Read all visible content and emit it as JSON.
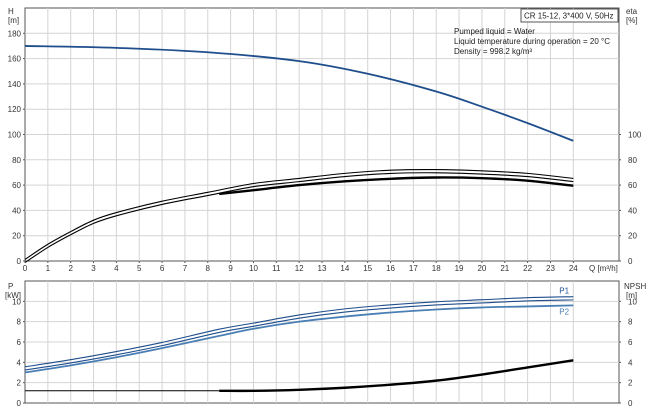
{
  "chart_data": [
    {
      "type": "line",
      "panel": "top",
      "title": "CR 15-12, 3*400 V, 50Hz",
      "info_lines": [
        "Pumped liquid = Water",
        "Liquid temperature during operation = 20 °C",
        "Density = 998.2 kg/m³"
      ],
      "xlabel": "Q [m³/h]",
      "x_ticks": [
        0,
        1,
        2,
        3,
        4,
        5,
        6,
        7,
        8,
        9,
        10,
        11,
        12,
        13,
        14,
        15,
        16,
        17,
        18,
        19,
        20,
        21,
        22,
        23,
        24
      ],
      "xlim": [
        0,
        26
      ],
      "ylabel_left_name": "H",
      "ylabel_left_unit": "[m]",
      "ylim_left": [
        0,
        200
      ],
      "y_ticks_left": [
        0,
        20,
        40,
        60,
        80,
        100,
        120,
        140,
        160,
        180
      ],
      "ylabel_right_name": "eta",
      "ylabel_right_unit": "[%]",
      "ylim_right": [
        0,
        200
      ],
      "y_ticks_right": [
        0,
        20,
        40,
        60,
        80,
        100
      ],
      "grid": true,
      "series": [
        {
          "axis": "left",
          "color": "#1f4e8c",
          "style": "single",
          "x": [
            0,
            4,
            8,
            12,
            15,
            18,
            20,
            22,
            24
          ],
          "y": [
            170,
            168.5,
            165,
            158,
            148,
            134,
            122,
            109,
            95
          ]
        },
        {
          "axis": "right",
          "color": "#000000",
          "style": "double",
          "x": [
            0,
            1,
            2,
            3,
            4,
            6,
            8,
            10,
            12,
            14,
            16,
            18,
            20,
            22,
            24
          ],
          "y": [
            0,
            12,
            22,
            31,
            37,
            46,
            53,
            60,
            64,
            68,
            70.5,
            71,
            70,
            68,
            64
          ]
        },
        {
          "axis": "right",
          "color": "#000000",
          "style": "thick",
          "x": [
            8.5,
            10,
            12,
            14,
            16,
            18,
            20,
            22,
            24
          ],
          "y": [
            53,
            56,
            60,
            63,
            65,
            66,
            65.5,
            63.5,
            59.5
          ]
        }
      ]
    },
    {
      "type": "line",
      "panel": "bottom",
      "ylabel_left_name": "P",
      "ylabel_left_unit": "[kW]",
      "ylim_left": [
        0,
        12
      ],
      "y_ticks_left": [
        0,
        2,
        4,
        6,
        8,
        10
      ],
      "ylabel_right_name": "NPSH",
      "ylabel_right_unit": "[m]",
      "ylim_right": [
        0,
        12
      ],
      "y_ticks_right": [
        0,
        2,
        4,
        6,
        8,
        10
      ],
      "xlim": [
        0,
        26
      ],
      "grid": true,
      "series": [
        {
          "name": "P1",
          "axis": "left",
          "color": "#1f4e8c",
          "style": "double",
          "x": [
            0,
            2,
            4,
            6,
            8.5,
            10,
            12,
            14,
            16,
            18,
            20,
            22,
            24
          ],
          "y": [
            3.4,
            4.1,
            4.9,
            5.8,
            7.1,
            7.7,
            8.5,
            9.1,
            9.5,
            9.8,
            10.0,
            10.2,
            10.3
          ]
        },
        {
          "name": "P2",
          "axis": "left",
          "color": "#4a7fb5",
          "style": "single",
          "x": [
            0,
            2,
            4,
            6,
            8.5,
            10,
            12,
            14,
            16,
            18,
            20,
            22,
            24
          ],
          "y": [
            3.0,
            3.7,
            4.5,
            5.4,
            6.6,
            7.3,
            8.0,
            8.5,
            8.9,
            9.2,
            9.4,
            9.5,
            9.6
          ]
        },
        {
          "axis": "right",
          "color": "#000000",
          "style": "thin",
          "x": [
            0,
            8.5
          ],
          "y": [
            1.2,
            1.2
          ]
        },
        {
          "axis": "right",
          "color": "#000000",
          "style": "thick",
          "x": [
            8.5,
            10,
            12,
            14,
            16,
            18,
            20,
            22,
            24
          ],
          "y": [
            1.2,
            1.2,
            1.3,
            1.5,
            1.8,
            2.2,
            2.8,
            3.5,
            4.2
          ]
        }
      ]
    }
  ]
}
